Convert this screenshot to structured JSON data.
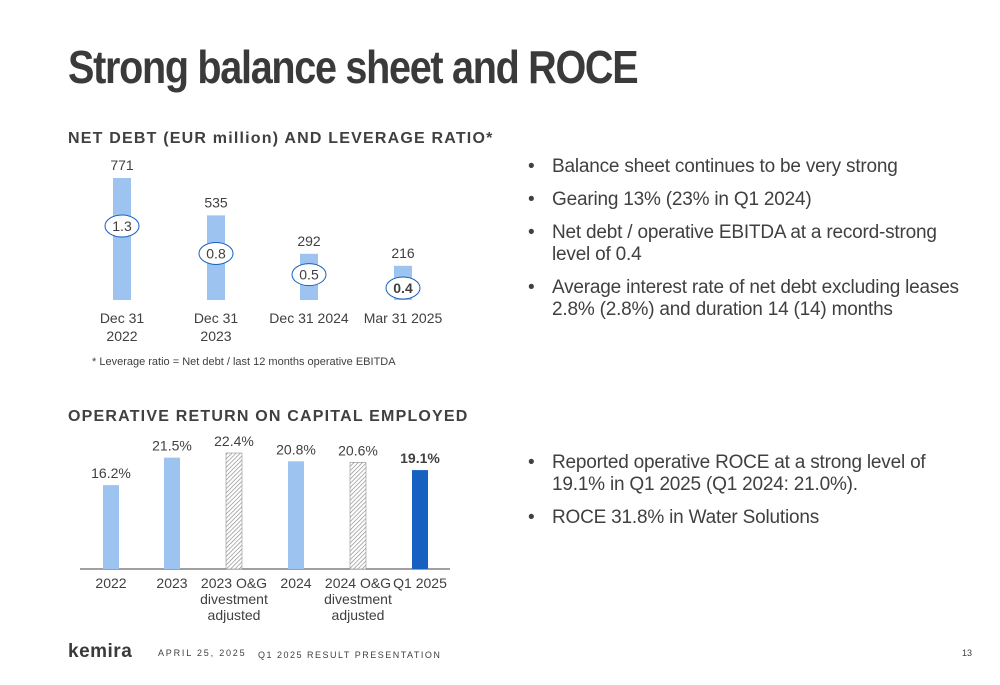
{
  "title": "Strong balance sheet and ROCE",
  "net_debt_section": {
    "title": "NET DEBT (EUR million) AND LEVERAGE RATIO*",
    "footnote": "* Leverage ratio = Net debt / last 12 months operative EBITDA"
  },
  "roce_section": {
    "title": "OPERATIVE RETURN ON CAPITAL EMPLOYED"
  },
  "bullets_top": [
    "Balance sheet continues to be very strong",
    "Gearing 13% (23% in Q1 2024)",
    "Net debt / operative EBITDA at a record-strong level of 0.4",
    "Average interest rate of net debt excluding leases 2.8% (2.8%) and duration 14 (14) months"
  ],
  "bullets_bottom": [
    "Reported operative ROCE at a strong level of 19.1% in Q1 2025 (Q1 2024: 21.0%).",
    "ROCE 31.8% in Water Solutions"
  ],
  "footer": {
    "logo": "kemira",
    "date": "APRIL 25, 2025",
    "presentation": "Q1 2025 RESULT PRESENTATION",
    "page": "13"
  },
  "colors": {
    "bar_light_blue": "#9dc3f0",
    "bar_dark_blue": "#1560c0",
    "hatch": "#808080",
    "text": "#404040"
  },
  "chart_data": [
    {
      "type": "bar",
      "title": "NET DEBT (EUR million) AND LEVERAGE RATIO*",
      "categories": [
        [
          "Dec 31",
          "2022"
        ],
        [
          "Dec 31",
          "2023"
        ],
        [
          "Dec 31 2024"
        ],
        [
          "Mar 31 2025"
        ]
      ],
      "series": [
        {
          "name": "Net debt",
          "values": [
            771,
            535,
            292,
            216
          ],
          "labels": [
            "771",
            "535",
            "292",
            "216"
          ]
        },
        {
          "name": "Leverage ratio",
          "values": [
            1.3,
            0.8,
            0.5,
            0.4
          ],
          "labels": [
            "1.3",
            "0.8",
            "0.5",
            "0.4"
          ],
          "bold": [
            false,
            false,
            false,
            true
          ]
        }
      ],
      "ylim": [
        0,
        771
      ]
    },
    {
      "type": "bar",
      "title": "OPERATIVE RETURN ON CAPITAL EMPLOYED",
      "categories": [
        [
          "2022"
        ],
        [
          "2023"
        ],
        [
          "2023 O&G",
          "divestment",
          "adjusted"
        ],
        [
          "2024"
        ],
        [
          "2024 O&G",
          "divestment",
          "adjusted"
        ],
        [
          "Q1 2025"
        ]
      ],
      "values": [
        16.2,
        21.5,
        22.4,
        20.8,
        20.6,
        19.1
      ],
      "labels": [
        "16.2%",
        "21.5%",
        "22.4%",
        "20.8%",
        "20.6%",
        "19.1%"
      ],
      "styles": [
        "light",
        "light",
        "hatched",
        "light",
        "hatched",
        "dark"
      ],
      "bold": [
        false,
        false,
        false,
        false,
        false,
        true
      ],
      "ylim": [
        0,
        22.4
      ]
    }
  ]
}
